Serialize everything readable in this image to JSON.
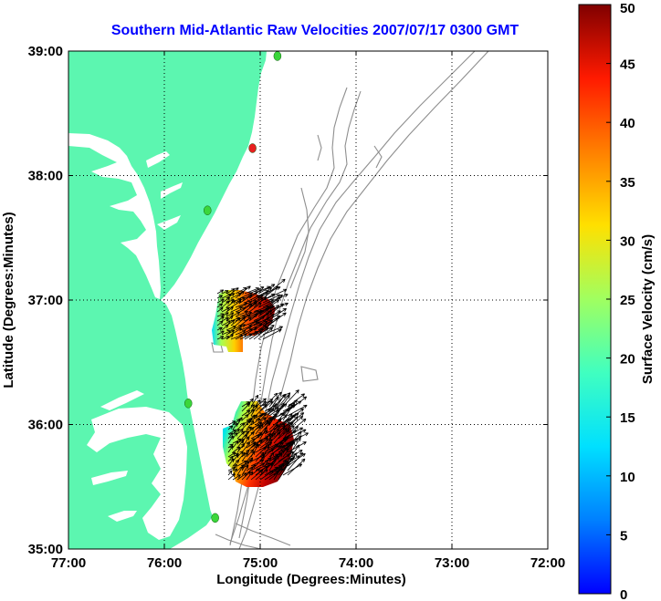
{
  "map": {
    "title": "Southern Mid-Atlantic Raw Velocities 2007/07/17 0300 GMT",
    "xlabel": "Longitude (Degrees:Minutes)",
    "ylabel": "Latitude (Degrees:Minutes)",
    "lon_ticks": [
      "77:00",
      "76:00",
      "75:00",
      "74:00",
      "73:00",
      "72:00"
    ],
    "lat_ticks": [
      "39:00",
      "38:00",
      "37:00",
      "36:00",
      "35:00"
    ],
    "lon_range": [
      -77,
      -72
    ],
    "lat_range": [
      35,
      39
    ],
    "land_color": "#5CF6B0",
    "grid": "dotted"
  },
  "colorbar": {
    "label": "Surface Velocity (cm/s)",
    "ticks": [
      "0",
      "5",
      "10",
      "15",
      "20",
      "25",
      "30",
      "35",
      "40",
      "45",
      "50"
    ],
    "range": [
      0,
      50
    ],
    "colormap": "jet"
  },
  "stations": [
    {
      "lon": -74.82,
      "lat": 38.96,
      "color": "#3BD63B"
    },
    {
      "lon": -75.08,
      "lat": 38.22,
      "color": "#E82020"
    },
    {
      "lon": -75.55,
      "lat": 37.72,
      "color": "#3BD63B"
    },
    {
      "lon": -75.75,
      "lat": 36.17,
      "color": "#3BD63B"
    },
    {
      "lon": -75.47,
      "lat": 35.25,
      "color": "#3BD63B"
    }
  ],
  "chart_data": {
    "type": "heatmap",
    "title": "Southern Mid-Atlantic Raw Velocities 2007/07/17 0300 GMT",
    "xlabel": "Longitude (Degrees:Minutes)",
    "ylabel": "Latitude (Degrees:Minutes)",
    "xlim": [
      -77,
      -72
    ],
    "ylim": [
      35,
      39
    ],
    "value_label": "Surface Velocity (cm/s)",
    "vlim": [
      0,
      50
    ],
    "regions": [
      {
        "name": "north",
        "lon_range": [
          -75.7,
          -74.75
        ],
        "lat_range": [
          36.65,
          37.05
        ],
        "velocity_range": [
          10,
          50
        ]
      },
      {
        "name": "south",
        "lon_range": [
          -75.65,
          -74.65
        ],
        "lat_range": [
          35.45,
          36.2
        ],
        "velocity_range": [
          5,
          50
        ]
      }
    ]
  }
}
